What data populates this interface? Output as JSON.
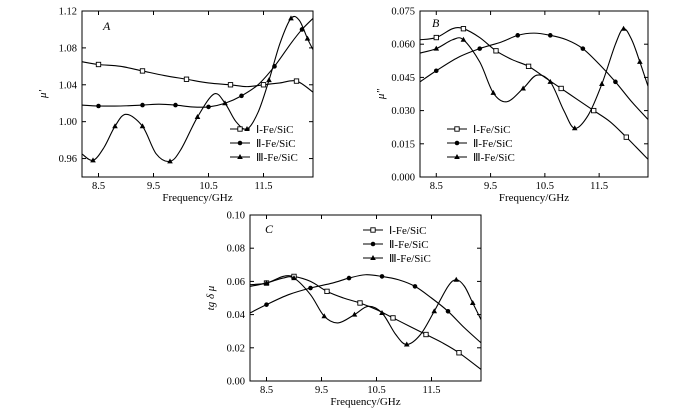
{
  "chart_data": [
    {
      "panel_label": "A",
      "type": "line",
      "xlabel": "Frequency/GHz",
      "ylabel": "μ'",
      "xlim": [
        8.2,
        12.4
      ],
      "ylim": [
        0.94,
        1.12
      ],
      "xticks": [
        8.5,
        9.5,
        10.5,
        11.5
      ],
      "xtick_labels": [
        "8.5",
        "9.5",
        "10.5",
        "11.5"
      ],
      "yticks": [
        0.96,
        1.0,
        1.04,
        1.08,
        1.12
      ],
      "ytick_labels": [
        "0.96",
        "1.00",
        "1.04",
        "1.08",
        "1.12"
      ],
      "legend_position": "lower-right",
      "series": [
        {
          "name": "Ⅰ-Fe/SiC",
          "marker": "open-square",
          "x": [
            8.2,
            8.5,
            8.9,
            9.3,
            9.7,
            10.1,
            10.5,
            10.9,
            11.2,
            11.5,
            11.8,
            12.1,
            12.4
          ],
          "y": [
            1.065,
            1.062,
            1.06,
            1.055,
            1.05,
            1.046,
            1.042,
            1.04,
            1.038,
            1.04,
            1.042,
            1.044,
            1.032
          ]
        },
        {
          "name": "Ⅱ-Fe/SiC",
          "marker": "filled-circle",
          "x": [
            8.2,
            8.5,
            8.9,
            9.3,
            9.6,
            9.9,
            10.2,
            10.5,
            10.8,
            11.1,
            11.4,
            11.7,
            12.0,
            12.2,
            12.4
          ],
          "y": [
            1.018,
            1.017,
            1.017,
            1.018,
            1.019,
            1.018,
            1.016,
            1.016,
            1.02,
            1.028,
            1.04,
            1.06,
            1.085,
            1.1,
            1.112
          ]
        },
        {
          "name": "Ⅲ-Fe/SiC",
          "marker": "filled-triangle",
          "x": [
            8.2,
            8.4,
            8.6,
            8.8,
            9.0,
            9.3,
            9.55,
            9.8,
            10.0,
            10.3,
            10.6,
            10.8,
            11.0,
            11.2,
            11.4,
            11.6,
            11.8,
            12.0,
            12.15,
            12.3,
            12.4
          ],
          "y": [
            0.965,
            0.958,
            0.972,
            0.995,
            1.008,
            0.995,
            0.965,
            0.957,
            0.97,
            1.005,
            1.03,
            1.02,
            1.0,
            0.992,
            1.01,
            1.045,
            1.085,
            1.112,
            1.11,
            1.09,
            1.078
          ]
        }
      ]
    },
    {
      "panel_label": "B",
      "type": "line",
      "xlabel": "Frequency/GHz",
      "ylabel": "μ\"",
      "xlim": [
        8.2,
        12.4
      ],
      "ylim": [
        0.0,
        0.075
      ],
      "xticks": [
        8.5,
        9.5,
        10.5,
        11.5
      ],
      "xtick_labels": [
        "8.5",
        "9.5",
        "10.5",
        "11.5"
      ],
      "yticks": [
        0.0,
        0.015,
        0.03,
        0.045,
        0.06,
        0.075
      ],
      "ytick_labels": [
        "0.000",
        "0.015",
        "0.030",
        "0.045",
        "0.060",
        "0.075"
      ],
      "legend_position": "lower-left",
      "series": [
        {
          "name": "Ⅰ-Fe/SiC",
          "marker": "open-square",
          "x": [
            8.2,
            8.5,
            8.8,
            9.0,
            9.3,
            9.6,
            9.9,
            10.2,
            10.5,
            10.8,
            11.1,
            11.4,
            11.7,
            12.0,
            12.4
          ],
          "y": [
            0.062,
            0.063,
            0.067,
            0.067,
            0.063,
            0.057,
            0.053,
            0.05,
            0.045,
            0.04,
            0.035,
            0.03,
            0.025,
            0.018,
            0.008
          ]
        },
        {
          "name": "Ⅱ-Fe/SiC",
          "marker": "filled-circle",
          "x": [
            8.2,
            8.5,
            8.9,
            9.3,
            9.7,
            10.0,
            10.3,
            10.6,
            10.9,
            11.2,
            11.5,
            11.8,
            12.1,
            12.4
          ],
          "y": [
            0.043,
            0.048,
            0.054,
            0.058,
            0.061,
            0.064,
            0.065,
            0.064,
            0.062,
            0.058,
            0.051,
            0.043,
            0.034,
            0.026
          ]
        },
        {
          "name": "Ⅲ-Fe/SiC",
          "marker": "filled-triangle",
          "x": [
            8.2,
            8.5,
            8.8,
            9.0,
            9.3,
            9.55,
            9.8,
            10.1,
            10.35,
            10.6,
            10.85,
            11.05,
            11.3,
            11.55,
            11.8,
            11.95,
            12.1,
            12.25,
            12.4
          ],
          "y": [
            0.056,
            0.058,
            0.062,
            0.062,
            0.052,
            0.038,
            0.034,
            0.04,
            0.046,
            0.043,
            0.03,
            0.022,
            0.028,
            0.042,
            0.06,
            0.067,
            0.062,
            0.052,
            0.041
          ]
        }
      ]
    },
    {
      "panel_label": "C",
      "type": "line",
      "xlabel": "Frequency/GHz",
      "ylabel": "tg δ μ",
      "xlim": [
        8.2,
        12.4
      ],
      "ylim": [
        0.0,
        0.1
      ],
      "xticks": [
        8.5,
        9.5,
        10.5,
        11.5
      ],
      "xtick_labels": [
        "8.5",
        "9.5",
        "10.5",
        "11.5"
      ],
      "yticks": [
        0.0,
        0.02,
        0.04,
        0.06,
        0.08,
        0.1
      ],
      "ytick_labels": [
        "0.00",
        "0.02",
        "0.04",
        "0.06",
        "0.08",
        "0.10"
      ],
      "legend_position": "top-right",
      "series": [
        {
          "name": "Ⅰ-Fe/SiC",
          "marker": "open-square",
          "x": [
            8.2,
            8.5,
            8.8,
            9.0,
            9.3,
            9.6,
            9.9,
            10.2,
            10.5,
            10.8,
            11.1,
            11.4,
            11.7,
            12.0,
            12.4
          ],
          "y": [
            0.058,
            0.059,
            0.063,
            0.063,
            0.06,
            0.054,
            0.05,
            0.047,
            0.043,
            0.038,
            0.033,
            0.028,
            0.023,
            0.017,
            0.007
          ]
        },
        {
          "name": "Ⅱ-Fe/SiC",
          "marker": "filled-circle",
          "x": [
            8.2,
            8.5,
            8.9,
            9.3,
            9.7,
            10.0,
            10.3,
            10.6,
            10.9,
            11.2,
            11.5,
            11.8,
            12.1,
            12.4
          ],
          "y": [
            0.041,
            0.046,
            0.052,
            0.056,
            0.059,
            0.062,
            0.064,
            0.063,
            0.061,
            0.057,
            0.05,
            0.042,
            0.032,
            0.023
          ]
        },
        {
          "name": "Ⅲ-Fe/SiC",
          "marker": "filled-triangle",
          "x": [
            8.2,
            8.5,
            8.8,
            9.0,
            9.3,
            9.55,
            9.8,
            10.1,
            10.35,
            10.6,
            10.85,
            11.05,
            11.3,
            11.55,
            11.8,
            11.95,
            12.1,
            12.25,
            12.4
          ],
          "y": [
            0.057,
            0.059,
            0.062,
            0.062,
            0.052,
            0.039,
            0.035,
            0.04,
            0.045,
            0.041,
            0.028,
            0.022,
            0.028,
            0.042,
            0.057,
            0.061,
            0.057,
            0.047,
            0.037
          ]
        }
      ]
    }
  ]
}
